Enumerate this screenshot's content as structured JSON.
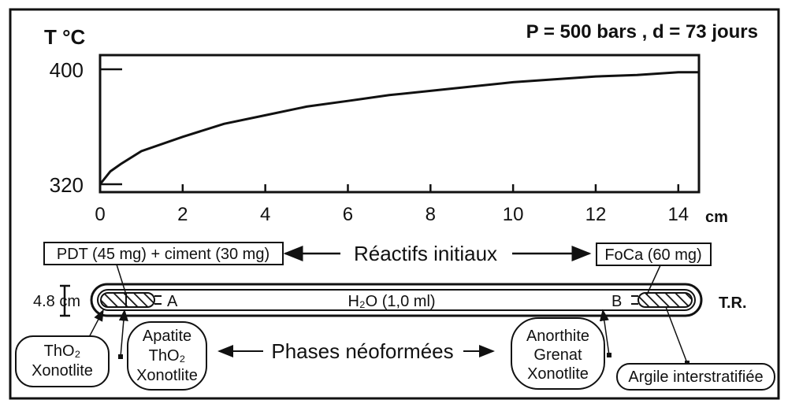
{
  "chart_data": {
    "type": "line",
    "title": "P = 500 bars , d = 73 jours",
    "ylabel": "T °C",
    "xlabel": "cm",
    "x_ticks": [
      "0",
      "2",
      "4",
      "6",
      "8",
      "10",
      "12",
      "14"
    ],
    "y_ticks": [
      "320",
      "400"
    ],
    "xlim": [
      0,
      14.5
    ],
    "ylim": [
      320,
      400
    ],
    "series": [
      {
        "x": [
          0,
          0.25,
          0.5,
          1,
          2,
          3,
          4,
          5,
          6,
          7,
          8,
          9,
          10,
          11,
          12,
          13,
          14,
          14.5
        ],
        "y": [
          320,
          329,
          334,
          343,
          353,
          362,
          368,
          374,
          378,
          382,
          385,
          388,
          391,
          393,
          395,
          396,
          398,
          398
        ]
      }
    ]
  },
  "diagram": {
    "reactifs_label": "Réactifs initiaux",
    "reactif_left": "PDT (45 mg) + ciment (30 mg)",
    "reactif_right": "FoCa (60 mg)",
    "tube_scale": "4.8 cm",
    "tube_content": "H₂O (1,0 ml)",
    "end_a": "A",
    "end_b": "B",
    "tr_label": "T.R.",
    "phases_label": "Phases néoformées",
    "phase_box_1": [
      "ThO₂",
      "Xonotlite"
    ],
    "phase_box_2": [
      "Apatite",
      "ThO₂",
      "Xonotlite"
    ],
    "phase_box_3": [
      "Anorthite",
      "Grenat",
      "Xonotlite"
    ],
    "phase_box_4": "Argile interstratifiée"
  }
}
